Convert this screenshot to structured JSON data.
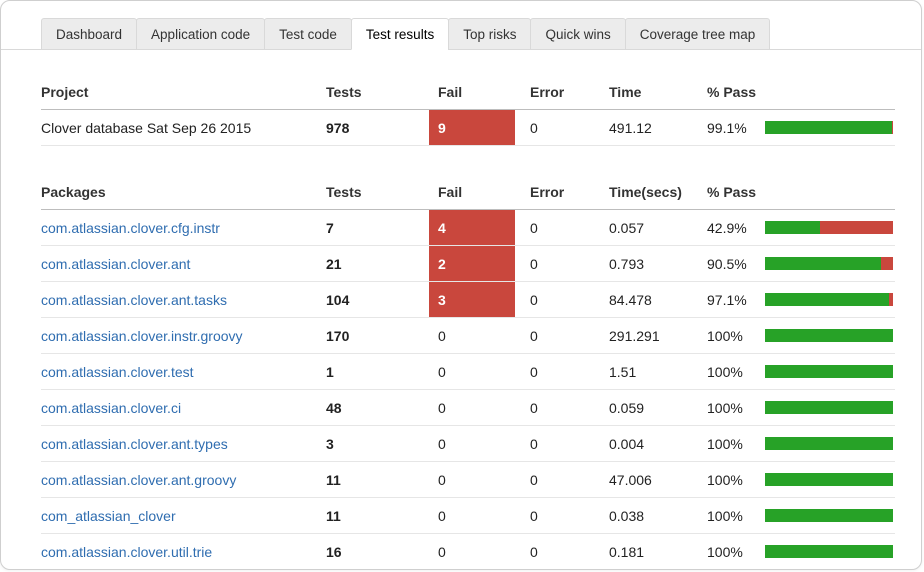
{
  "tabs": [
    {
      "label": "Dashboard",
      "active": false
    },
    {
      "label": "Application code",
      "active": false
    },
    {
      "label": "Test code",
      "active": false
    },
    {
      "label": "Test results",
      "active": true
    },
    {
      "label": "Top risks",
      "active": false
    },
    {
      "label": "Quick wins",
      "active": false
    },
    {
      "label": "Coverage tree map",
      "active": false
    }
  ],
  "project": {
    "headers": {
      "name": "Project",
      "tests": "Tests",
      "fail": "Fail",
      "error": "Error",
      "time": "Time",
      "pass": "% Pass"
    },
    "rows": [
      {
        "name": "Clover database Sat Sep 26 2015",
        "tests": "978",
        "fail": "9",
        "fail_highlight": true,
        "error": "0",
        "time": "491.12",
        "pass": "99.1%",
        "pass_pct": 99.1
      }
    ]
  },
  "packages": {
    "headers": {
      "name": "Packages",
      "tests": "Tests",
      "fail": "Fail",
      "error": "Error",
      "time": "Time(secs)",
      "pass": "% Pass"
    },
    "rows": [
      {
        "name": "com.atlassian.clover.cfg.instr",
        "tests": "7",
        "fail": "4",
        "fail_highlight": true,
        "error": "0",
        "time": "0.057",
        "pass": "42.9%",
        "pass_pct": 42.9
      },
      {
        "name": "com.atlassian.clover.ant",
        "tests": "21",
        "fail": "2",
        "fail_highlight": true,
        "error": "0",
        "time": "0.793",
        "pass": "90.5%",
        "pass_pct": 90.5
      },
      {
        "name": "com.atlassian.clover.ant.tasks",
        "tests": "104",
        "fail": "3",
        "fail_highlight": true,
        "error": "0",
        "time": "84.478",
        "pass": "97.1%",
        "pass_pct": 97.1
      },
      {
        "name": "com.atlassian.clover.instr.groovy",
        "tests": "170",
        "fail": "0",
        "fail_highlight": false,
        "error": "0",
        "time": "291.291",
        "pass": "100%",
        "pass_pct": 100
      },
      {
        "name": "com.atlassian.clover.test",
        "tests": "1",
        "fail": "0",
        "fail_highlight": false,
        "error": "0",
        "time": "1.51",
        "pass": "100%",
        "pass_pct": 100
      },
      {
        "name": "com.atlassian.clover.ci",
        "tests": "48",
        "fail": "0",
        "fail_highlight": false,
        "error": "0",
        "time": "0.059",
        "pass": "100%",
        "pass_pct": 100
      },
      {
        "name": "com.atlassian.clover.ant.types",
        "tests": "3",
        "fail": "0",
        "fail_highlight": false,
        "error": "0",
        "time": "0.004",
        "pass": "100%",
        "pass_pct": 100
      },
      {
        "name": "com.atlassian.clover.ant.groovy",
        "tests": "11",
        "fail": "0",
        "fail_highlight": false,
        "error": "0",
        "time": "47.006",
        "pass": "100%",
        "pass_pct": 100
      },
      {
        "name": "com_atlassian_clover",
        "tests": "11",
        "fail": "0",
        "fail_highlight": false,
        "error": "0",
        "time": "0.038",
        "pass": "100%",
        "pass_pct": 100
      },
      {
        "name": "com.atlassian.clover.util.trie",
        "tests": "16",
        "fail": "0",
        "fail_highlight": false,
        "error": "0",
        "time": "0.181",
        "pass": "100%",
        "pass_pct": 100
      }
    ]
  },
  "colors": {
    "fail_red": "#c9473d",
    "bar_green": "#27a227",
    "bar_red": "#c9473d",
    "link_blue": "#2f6db0"
  }
}
